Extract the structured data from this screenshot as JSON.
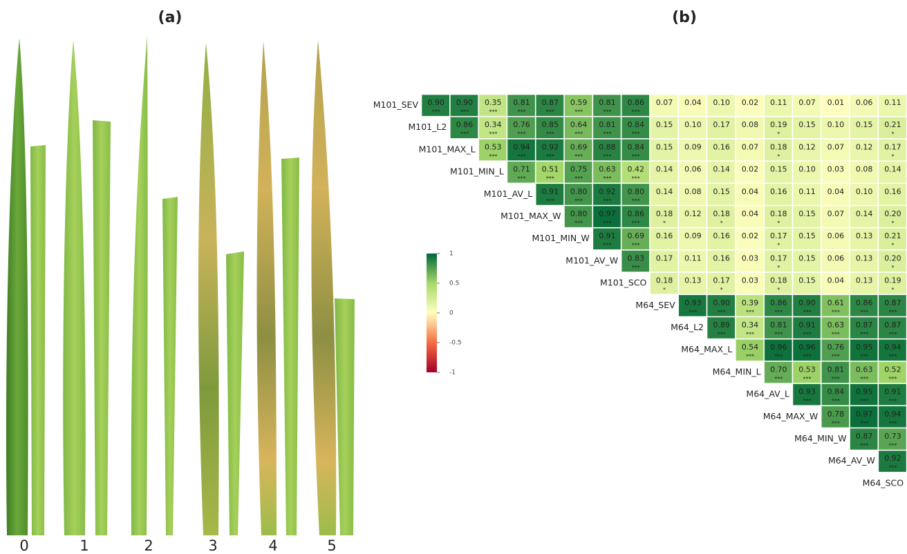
{
  "panel_a": {
    "title": "(a)",
    "scores": [
      "0",
      "1",
      "2",
      "3",
      "4",
      "5"
    ]
  },
  "chart_data": {
    "type": "heatmap",
    "title": "(b)",
    "variables": [
      "M101_SEV",
      "M101_L2",
      "M101_MAX_L",
      "M101_MIN_L",
      "M101_AV_L",
      "M101_MAX_W",
      "M101_MIN_W",
      "M101_AV_W",
      "M101_SCO",
      "M64_SEV",
      "M64_L2",
      "M64_MAX_L",
      "M64_MIN_L",
      "M64_AV_L",
      "M64_MAX_W",
      "M64_MIN_W",
      "M64_AV_W",
      "M64_SCO"
    ],
    "values": [
      [
        0.9,
        0.9,
        0.35,
        0.81,
        0.87,
        0.59,
        0.81,
        0.86,
        0.07,
        0.04,
        0.1,
        0.02,
        0.11,
        0.07,
        0.01,
        0.06,
        0.11
      ],
      [
        0.86,
        0.34,
        0.76,
        0.85,
        0.64,
        0.81,
        0.84,
        0.15,
        0.1,
        0.17,
        0.08,
        0.19,
        0.15,
        0.1,
        0.15,
        0.21
      ],
      [
        0.53,
        0.94,
        0.92,
        0.69,
        0.88,
        0.84,
        0.15,
        0.09,
        0.16,
        0.07,
        0.18,
        0.12,
        0.07,
        0.12,
        0.17
      ],
      [
        0.71,
        0.51,
        0.75,
        0.63,
        0.42,
        0.14,
        0.06,
        0.14,
        0.02,
        0.15,
        0.1,
        0.03,
        0.08,
        0.14
      ],
      [
        0.91,
        0.8,
        0.92,
        0.8,
        0.14,
        0.08,
        0.15,
        0.04,
        0.16,
        0.11,
        0.04,
        0.1,
        0.16
      ],
      [
        0.8,
        0.97,
        0.86,
        0.18,
        0.12,
        0.18,
        0.04,
        0.18,
        0.15,
        0.07,
        0.14,
        0.2
      ],
      [
        0.91,
        0.69,
        0.16,
        0.09,
        0.16,
        0.02,
        0.17,
        0.15,
        0.06,
        0.13,
        0.21
      ],
      [
        0.83,
        0.17,
        0.11,
        0.16,
        0.03,
        0.17,
        0.15,
        0.06,
        0.13,
        0.2
      ],
      [
        0.18,
        0.13,
        0.17,
        0.03,
        0.18,
        0.15,
        0.04,
        0.13,
        0.19
      ],
      [
        0.93,
        0.9,
        0.39,
        0.86,
        0.9,
        0.61,
        0.86,
        0.87
      ],
      [
        0.89,
        0.34,
        0.81,
        0.91,
        0.63,
        0.87,
        0.87
      ],
      [
        0.54,
        0.96,
        0.96,
        0.76,
        0.95,
        0.94
      ],
      [
        0.7,
        0.53,
        0.81,
        0.63,
        0.52
      ],
      [
        0.93,
        0.84,
        0.95,
        0.91
      ],
      [
        0.78,
        0.97,
        0.94
      ],
      [
        0.87,
        0.73
      ],
      [
        0.92
      ]
    ],
    "value_labels": [
      [
        "0.90",
        "0.90",
        "0.35",
        "0.81",
        "0.87",
        "0.59",
        "0.81",
        "0.86",
        "0.07",
        "0.04",
        "0.10",
        "0.02",
        "0.11",
        "0.07",
        "0.01",
        "0.06",
        "0.11"
      ],
      [
        "0.86",
        "0.34",
        "0.76",
        "0.85",
        "0.64",
        "0.81",
        "0.84",
        "0.15",
        "0.10",
        "0.17",
        "0.08",
        "0.19",
        "0.15",
        "0.10",
        "0.15",
        "0.21"
      ],
      [
        "0.53",
        "0.94",
        "0.92",
        "0.69",
        "0.88",
        "0.84",
        "0.15",
        "0.09",
        "0.16",
        "0.07",
        "0.18",
        "0.12",
        "0.07",
        "0.12",
        "0.17"
      ],
      [
        "0.71",
        "0.51",
        "0.75",
        "0.63",
        "0.42",
        "0.14",
        "0.06",
        "0.14",
        "0.02",
        "0.15",
        "0.10",
        "0.03",
        "0.08",
        "0.14"
      ],
      [
        "0.91",
        "0.80",
        "0.92",
        "0.80",
        "0.14",
        "0.08",
        "0.15",
        "0.04",
        "0.16",
        "0.11",
        "0.04",
        "0.10",
        "0.16"
      ],
      [
        "0.80",
        "0.97",
        "0.86",
        "0.18",
        "0.12",
        "0.18",
        "0.04",
        "0.18",
        "0.15",
        "0.07",
        "0.14",
        "0.20"
      ],
      [
        "0.91",
        "0.69",
        "0.16",
        "0.09",
        "0.16",
        "0.02",
        "0.17",
        "0.15",
        "0.06",
        "0.13",
        "0.21"
      ],
      [
        "0.83",
        "0.17",
        "0.11",
        "0.16",
        "0.03",
        "0.17",
        "0.15",
        "0.06",
        "0.13",
        "0.20"
      ],
      [
        "0.18",
        "0.13",
        "0.17",
        "0.03",
        "0.18",
        "0.15",
        "0.04",
        "0.13",
        "0.19"
      ],
      [
        "0.93",
        "0.90",
        "0.39",
        "0.86",
        "0.90",
        "0.61",
        "0.86",
        "0.87"
      ],
      [
        "0.89",
        "0.34",
        "0.81",
        "0.91",
        "0.63",
        "0.87",
        "0.87"
      ],
      [
        "0.54",
        "0.96",
        "0.96",
        "0.76",
        "0.95",
        "0.94"
      ],
      [
        "0.70",
        "0.53",
        "0.81",
        "0.63",
        "0.52"
      ],
      [
        "0.93",
        "0.84",
        "0.95",
        "0.91"
      ],
      [
        "0.78",
        "0.97",
        "0.94"
      ],
      [
        "0.87",
        "0.73"
      ],
      [
        "0.92"
      ]
    ],
    "significance": [
      [
        "***",
        "***",
        "***",
        "***",
        "***",
        "***",
        "***",
        "***",
        null,
        null,
        null,
        null,
        null,
        null,
        null,
        null,
        null
      ],
      [
        "***",
        "***",
        "***",
        "***",
        "***",
        "***",
        "***",
        null,
        null,
        null,
        null,
        "*",
        null,
        null,
        null,
        "*"
      ],
      [
        "***",
        "***",
        "***",
        "***",
        "***",
        "***",
        null,
        null,
        null,
        null,
        "*",
        null,
        null,
        null,
        "*"
      ],
      [
        "***",
        "***",
        "***",
        "***",
        "***",
        null,
        null,
        null,
        null,
        null,
        null,
        null,
        null,
        null
      ],
      [
        "***",
        "***",
        "***",
        "***",
        null,
        null,
        null,
        null,
        null,
        null,
        null,
        null,
        null
      ],
      [
        "***",
        "***",
        "***",
        "*",
        null,
        "*",
        null,
        "*",
        null,
        null,
        null,
        "*"
      ],
      [
        "***",
        "***",
        null,
        null,
        null,
        null,
        "*",
        null,
        null,
        null,
        "*"
      ],
      [
        "***",
        null,
        null,
        null,
        null,
        "*",
        null,
        null,
        null,
        "*"
      ],
      [
        "*",
        null,
        "*",
        null,
        "*",
        null,
        null,
        null,
        "*"
      ],
      [
        "***",
        "***",
        "***",
        "***",
        "***",
        "***",
        "***",
        "***"
      ],
      [
        "***",
        "***",
        "***",
        "***",
        "***",
        "***",
        "***"
      ],
      [
        "***",
        "***",
        "***",
        "***",
        "***",
        "***"
      ],
      [
        "***",
        "***",
        "***",
        "***",
        "***"
      ],
      [
        "***",
        "***",
        "***",
        "***"
      ],
      [
        "***",
        "***",
        "***"
      ],
      [
        "***",
        "***"
      ],
      [
        "***"
      ]
    ],
    "colorbar": {
      "lim": [
        -1,
        1
      ],
      "ticks": [
        1,
        0.5,
        0,
        -0.5,
        -1
      ],
      "colors": [
        "#a50026",
        "#f46d43",
        "#ffffbf",
        "#a6d96a",
        "#006837"
      ]
    }
  }
}
